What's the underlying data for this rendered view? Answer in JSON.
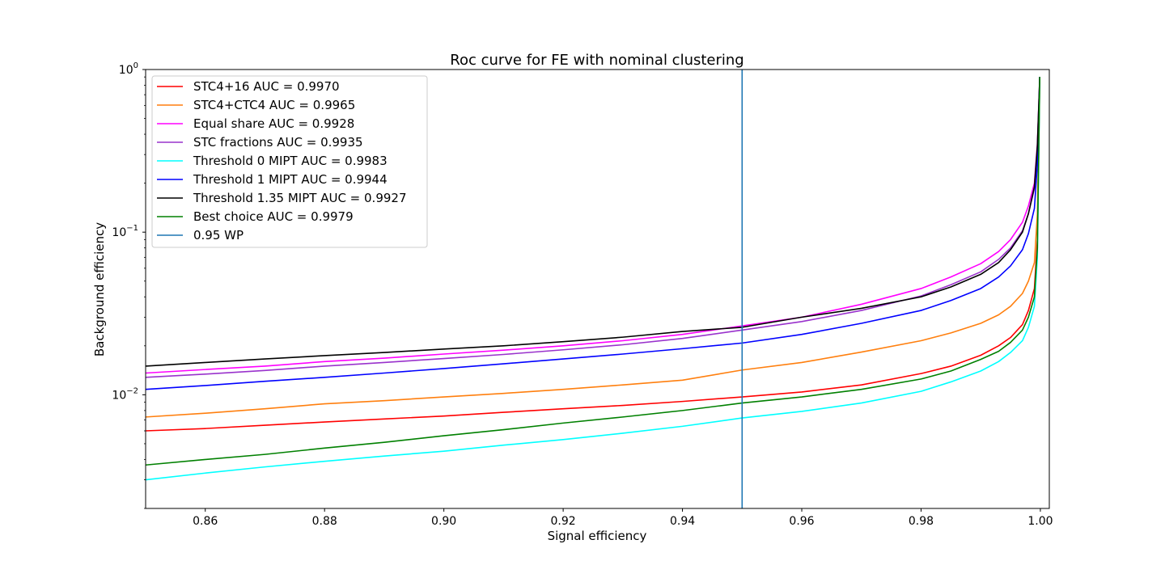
{
  "chart_data": {
    "type": "line",
    "title": "Roc curve for FE with nominal clustering",
    "xlabel": "Signal efficiency",
    "ylabel": "Background efficiency",
    "xlim": [
      0.85,
      1.0015
    ],
    "ylim": [
      0.002,
      1.0
    ],
    "yscale": "log",
    "grid": false,
    "legend_position": "upper-left",
    "xticks": [
      {
        "v": 0.86,
        "label": "0.86"
      },
      {
        "v": 0.88,
        "label": "0.88"
      },
      {
        "v": 0.9,
        "label": "0.90"
      },
      {
        "v": 0.92,
        "label": "0.92"
      },
      {
        "v": 0.94,
        "label": "0.94"
      },
      {
        "v": 0.96,
        "label": "0.96"
      },
      {
        "v": 0.98,
        "label": "0.98"
      },
      {
        "v": 1.0,
        "label": "1.00"
      }
    ],
    "yticks": [
      {
        "v": 0.01,
        "base": "10",
        "exp": "−2"
      },
      {
        "v": 0.1,
        "base": "10",
        "exp": "−1"
      },
      {
        "v": 1,
        "base": "10",
        "exp": "0"
      }
    ],
    "x": [
      0.85,
      0.86,
      0.87,
      0.88,
      0.89,
      0.9,
      0.91,
      0.92,
      0.93,
      0.94,
      0.95,
      0.96,
      0.97,
      0.98,
      0.985,
      0.99,
      0.993,
      0.995,
      0.997,
      0.998,
      0.999,
      0.9995,
      0.9999
    ],
    "series": [
      {
        "name": "STC4+16 AUC = 0.9970",
        "color": "#ff0000",
        "values": [
          0.006,
          0.0062,
          0.0065,
          0.0068,
          0.0071,
          0.0074,
          0.0078,
          0.0082,
          0.0086,
          0.0091,
          0.0097,
          0.0104,
          0.0115,
          0.0135,
          0.015,
          0.0175,
          0.02,
          0.0225,
          0.027,
          0.033,
          0.045,
          0.09,
          0.9
        ]
      },
      {
        "name": "STC4+CTC4 AUC = 0.9965",
        "color": "#ff7f0e",
        "values": [
          0.0073,
          0.0077,
          0.0082,
          0.0088,
          0.0092,
          0.0097,
          0.0102,
          0.0108,
          0.0115,
          0.0123,
          0.0142,
          0.0158,
          0.0183,
          0.0215,
          0.024,
          0.0275,
          0.031,
          0.035,
          0.042,
          0.05,
          0.065,
          0.13,
          0.9
        ]
      },
      {
        "name": "Equal share AUC = 0.9928",
        "color": "#ff00ff",
        "values": [
          0.0136,
          0.0143,
          0.015,
          0.016,
          0.0168,
          0.0178,
          0.0188,
          0.02,
          0.0215,
          0.0235,
          0.0265,
          0.03,
          0.036,
          0.045,
          0.053,
          0.064,
          0.076,
          0.09,
          0.115,
          0.145,
          0.2,
          0.35,
          0.9
        ]
      },
      {
        "name": "STC fractions AUC = 0.9935",
        "color": "#9932cc",
        "values": [
          0.0128,
          0.0134,
          0.0141,
          0.015,
          0.0158,
          0.0167,
          0.0177,
          0.0189,
          0.0203,
          0.0222,
          0.025,
          0.0282,
          0.033,
          0.0405,
          0.0475,
          0.057,
          0.068,
          0.08,
          0.102,
          0.13,
          0.185,
          0.33,
          0.9
        ]
      },
      {
        "name": "Threshold 0 MIPT AUC = 0.9983",
        "color": "#00ffff",
        "values": [
          0.003,
          0.0033,
          0.0036,
          0.0039,
          0.0042,
          0.0045,
          0.0049,
          0.0053,
          0.0058,
          0.0064,
          0.0072,
          0.0079,
          0.0089,
          0.0105,
          0.012,
          0.014,
          0.016,
          0.0182,
          0.0215,
          0.026,
          0.035,
          0.07,
          0.9
        ]
      },
      {
        "name": "Threshold 1 MIPT AUC = 0.9944",
        "color": "#0000ff",
        "values": [
          0.0108,
          0.0114,
          0.0121,
          0.0128,
          0.0136,
          0.0145,
          0.0155,
          0.0166,
          0.0178,
          0.0192,
          0.0208,
          0.0235,
          0.0275,
          0.033,
          0.038,
          0.045,
          0.053,
          0.062,
          0.078,
          0.098,
          0.14,
          0.26,
          0.9
        ]
      },
      {
        "name": "Threshold 1.35 MIPT AUC = 0.9927",
        "color": "#000000",
        "values": [
          0.015,
          0.0158,
          0.0166,
          0.0174,
          0.0182,
          0.0191,
          0.02,
          0.0212,
          0.0226,
          0.0245,
          0.026,
          0.03,
          0.034,
          0.04,
          0.046,
          0.055,
          0.065,
          0.078,
          0.1,
          0.13,
          0.19,
          0.34,
          0.9
        ]
      },
      {
        "name": "Best choice AUC = 0.9979",
        "color": "#008000",
        "values": [
          0.0037,
          0.004,
          0.0043,
          0.0047,
          0.0051,
          0.0056,
          0.0061,
          0.0067,
          0.0073,
          0.008,
          0.0089,
          0.0097,
          0.0108,
          0.0125,
          0.014,
          0.0165,
          0.0185,
          0.021,
          0.025,
          0.03,
          0.04,
          0.08,
          0.9
        ]
      }
    ],
    "vlines": [
      {
        "name": "0.95 WP",
        "x": 0.95,
        "color": "#1f77b4"
      }
    ]
  }
}
